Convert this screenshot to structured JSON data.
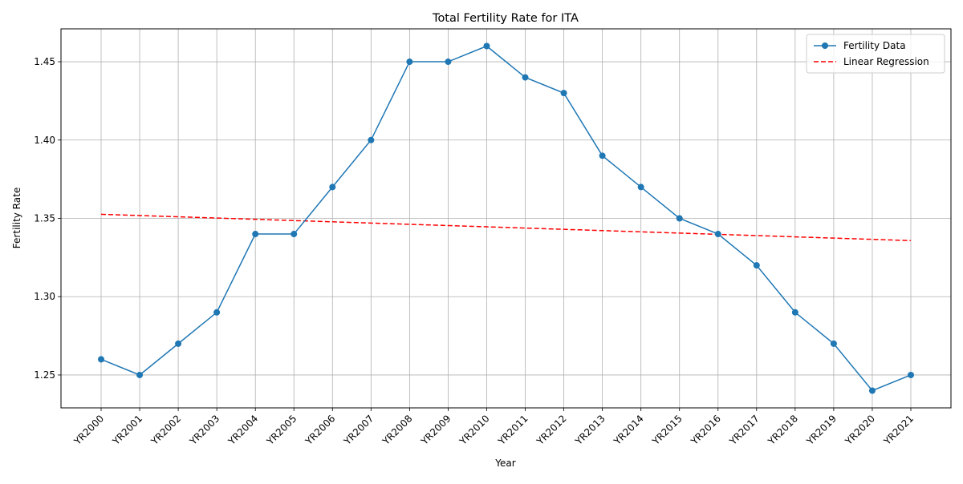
{
  "chart_data": {
    "type": "line",
    "title": "Total Fertility Rate for ITA",
    "xlabel": "Year",
    "ylabel": "Fertility Rate",
    "categories": [
      "YR2000",
      "YR2001",
      "YR2002",
      "YR2003",
      "YR2004",
      "YR2005",
      "YR2006",
      "YR2007",
      "YR2008",
      "YR2009",
      "YR2010",
      "YR2011",
      "YR2012",
      "YR2013",
      "YR2014",
      "YR2015",
      "YR2016",
      "YR2017",
      "YR2018",
      "YR2019",
      "YR2020",
      "YR2021"
    ],
    "ylim": [
      1.229,
      1.471
    ],
    "yticks": [
      1.25,
      1.3,
      1.35,
      1.4,
      1.45
    ],
    "ytick_labels": [
      "1.25",
      "1.30",
      "1.35",
      "1.40",
      "1.45"
    ],
    "grid": true,
    "legend_position": "top-right",
    "series": [
      {
        "name": "Fertility Data",
        "style": "solid-with-markers",
        "color": "#1f77b4",
        "values": [
          1.26,
          1.25,
          1.27,
          1.29,
          1.34,
          1.34,
          1.37,
          1.4,
          1.45,
          1.45,
          1.46,
          1.44,
          1.43,
          1.39,
          1.37,
          1.35,
          1.34,
          1.32,
          1.29,
          1.27,
          1.24,
          1.25
        ]
      },
      {
        "name": "Linear Regression",
        "style": "dashed",
        "color": "#ff0000",
        "values": [
          1.3526,
          1.3518,
          1.351,
          1.3502,
          1.3494,
          1.3486,
          1.3478,
          1.347,
          1.3462,
          1.3454,
          1.3446,
          1.3438,
          1.343,
          1.3422,
          1.3414,
          1.3406,
          1.3398,
          1.339,
          1.3382,
          1.3374,
          1.3366,
          1.3358
        ]
      }
    ]
  }
}
